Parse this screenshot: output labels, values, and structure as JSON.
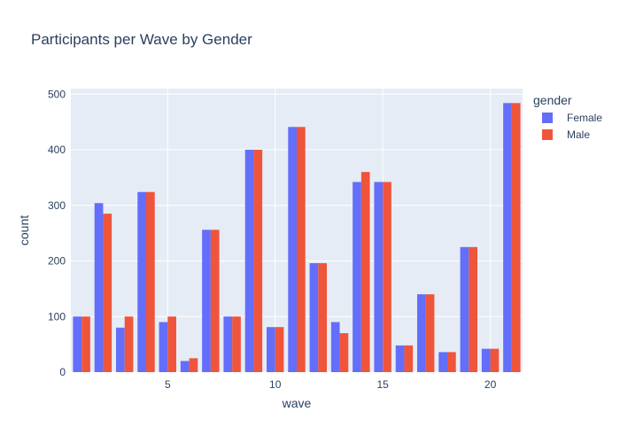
{
  "chart_data": {
    "type": "bar",
    "title": "Participants per Wave by Gender",
    "xlabel": "wave",
    "ylabel": "count",
    "x": [
      1,
      2,
      3,
      4,
      5,
      6,
      7,
      8,
      9,
      10,
      11,
      12,
      13,
      14,
      15,
      16,
      17,
      18,
      19,
      20,
      21
    ],
    "xlim": [
      0.5,
      21.5
    ],
    "ylim": [
      0,
      510
    ],
    "x_ticks": [
      5,
      10,
      15,
      20
    ],
    "y_ticks": [
      0,
      100,
      200,
      300,
      400,
      500
    ],
    "grid": true,
    "barmode": "group",
    "legend": {
      "title": "gender",
      "placement": "top-right outside"
    },
    "series": [
      {
        "name": "Female",
        "color": "#636efa",
        "values": [
          100,
          304,
          80,
          324,
          90,
          20,
          256,
          100,
          400,
          81,
          441,
          196,
          90,
          342,
          342,
          48,
          140,
          36,
          225,
          42,
          484
        ]
      },
      {
        "name": "Male",
        "color": "#ef553b",
        "values": [
          100,
          285,
          100,
          324,
          100,
          25,
          256,
          100,
          400,
          81,
          441,
          196,
          70,
          360,
          342,
          48,
          140,
          36,
          225,
          42,
          484
        ]
      }
    ]
  },
  "colors": {
    "plot_background": "#e5ecf6",
    "gridline": "#ffffff",
    "text": "#2a3f5f"
  }
}
